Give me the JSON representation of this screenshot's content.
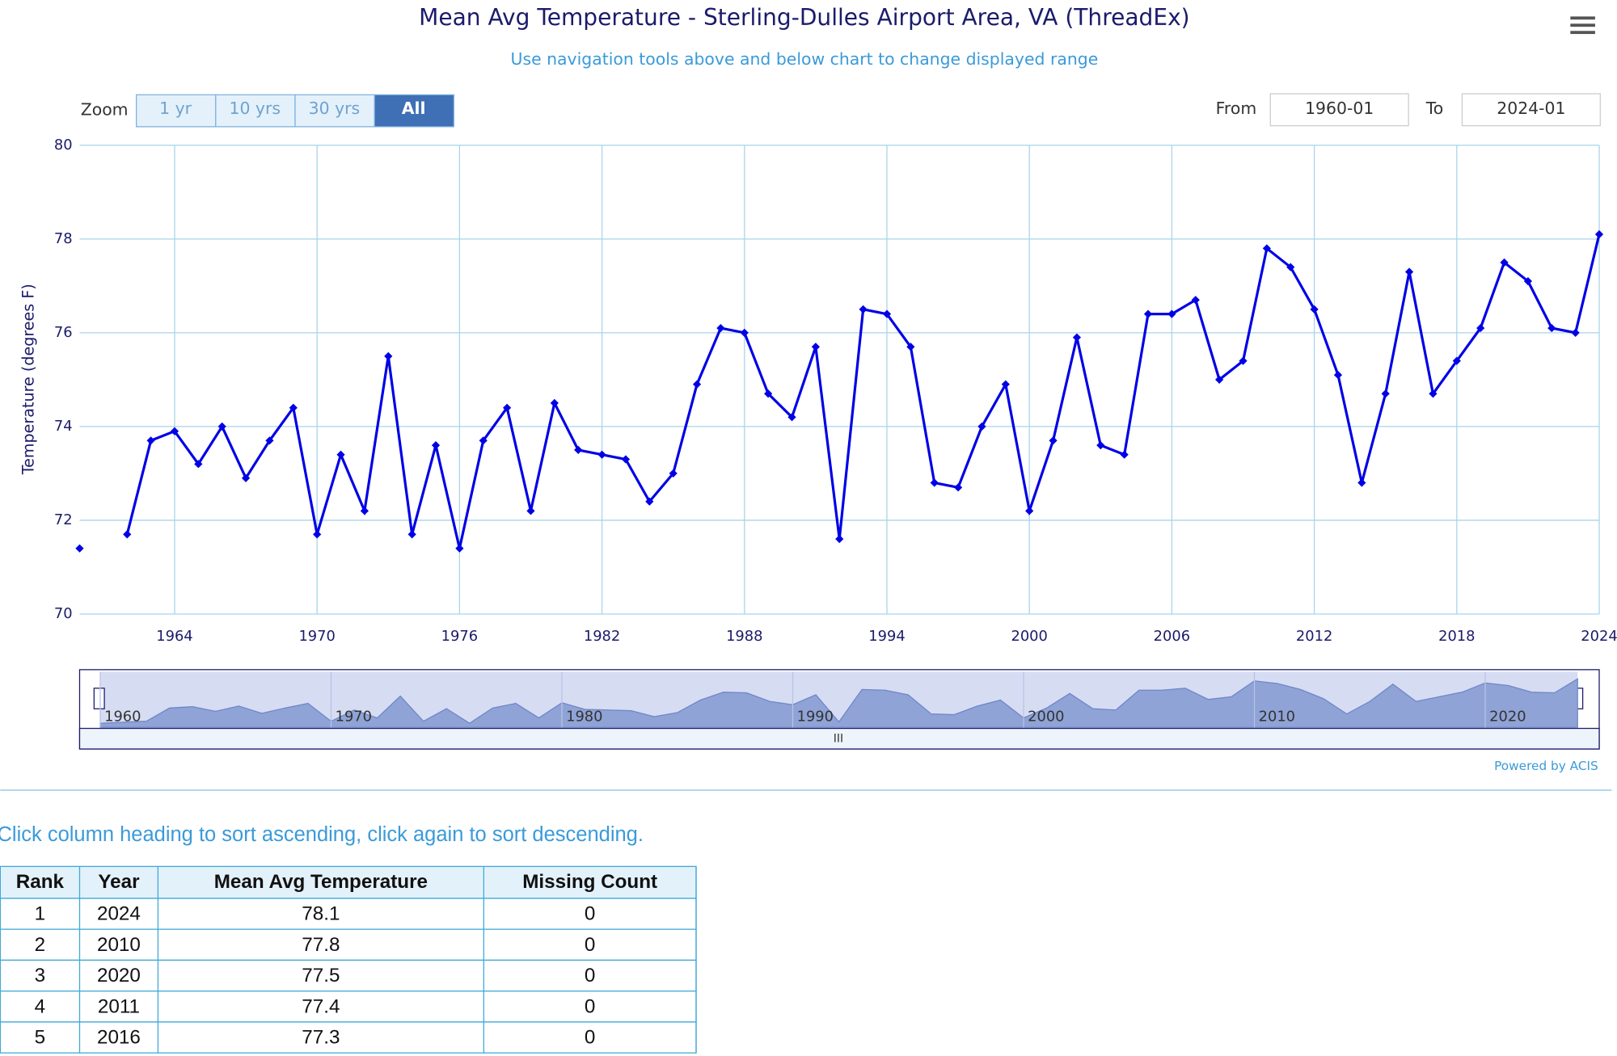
{
  "chart_data": {
    "type": "line",
    "title": "Mean Avg Temperature - Sterling-Dulles Airport Area, VA (ThreadEx)",
    "subtitle": "Use navigation tools above and below chart to change displayed range",
    "y_label": "Temperature (degrees F)",
    "x": [
      1960,
      1961,
      1962,
      1963,
      1964,
      1965,
      1966,
      1967,
      1968,
      1969,
      1970,
      1971,
      1972,
      1973,
      1974,
      1975,
      1976,
      1977,
      1978,
      1979,
      1980,
      1981,
      1982,
      1983,
      1984,
      1985,
      1986,
      1987,
      1988,
      1989,
      1990,
      1991,
      1992,
      1993,
      1994,
      1995,
      1996,
      1997,
      1998,
      1999,
      2000,
      2001,
      2002,
      2003,
      2004,
      2005,
      2006,
      2007,
      2008,
      2009,
      2010,
      2011,
      2012,
      2013,
      2014,
      2015,
      2016,
      2017,
      2018,
      2019,
      2020,
      2021,
      2022,
      2023,
      2024
    ],
    "series": [
      {
        "name": "Mean Avg Temperature",
        "color": "#0000e6",
        "values": [
          71.4,
          null,
          71.7,
          73.7,
          73.9,
          73.2,
          74.0,
          72.9,
          73.7,
          74.4,
          71.7,
          73.4,
          72.2,
          75.5,
          71.7,
          73.6,
          71.4,
          73.7,
          74.4,
          72.2,
          74.5,
          73.5,
          73.4,
          73.3,
          72.4,
          73.0,
          74.9,
          76.1,
          76.0,
          74.7,
          74.2,
          75.7,
          71.6,
          76.5,
          76.4,
          75.7,
          72.8,
          72.7,
          74.0,
          74.9,
          72.2,
          73.7,
          75.9,
          73.6,
          73.4,
          76.4,
          76.4,
          76.7,
          75.0,
          75.4,
          77.8,
          77.4,
          76.5,
          75.1,
          72.8,
          74.7,
          77.3,
          74.7,
          75.4,
          76.1,
          77.5,
          77.1,
          76.1,
          76.0,
          78.1
        ]
      }
    ],
    "xlim": [
      1960,
      2024
    ],
    "xticks": [
      1964,
      1970,
      1976,
      1982,
      1988,
      1994,
      2000,
      2006,
      2012,
      2018,
      2024
    ],
    "ylim": [
      70,
      80
    ],
    "yticks": [
      70,
      72,
      74,
      76,
      78,
      80
    ],
    "grid": true,
    "navigator": {
      "xticks": [
        1960,
        1970,
        1980,
        1990,
        2000,
        2010,
        2020
      ]
    }
  },
  "controls": {
    "zoom_label": "Zoom",
    "zoom_buttons": [
      "1 yr",
      "10 yrs",
      "30 yrs",
      "All"
    ],
    "active_zoom": "All",
    "from_label": "From",
    "from_value": "1960-01",
    "to_label": "To",
    "to_value": "2024-01",
    "credit": "Powered by ACIS"
  },
  "table": {
    "instruction": "Click column heading to sort ascending, click again to sort descending.",
    "header": [
      "Rank",
      "Year",
      "Mean Avg Temperature",
      "Missing Count"
    ],
    "rows": [
      [
        1,
        2024,
        78.1,
        0
      ],
      [
        2,
        2010,
        77.8,
        0
      ],
      [
        3,
        2020,
        77.5,
        0
      ],
      [
        4,
        2011,
        77.4,
        0
      ],
      [
        5,
        2016,
        77.3,
        0
      ]
    ]
  }
}
